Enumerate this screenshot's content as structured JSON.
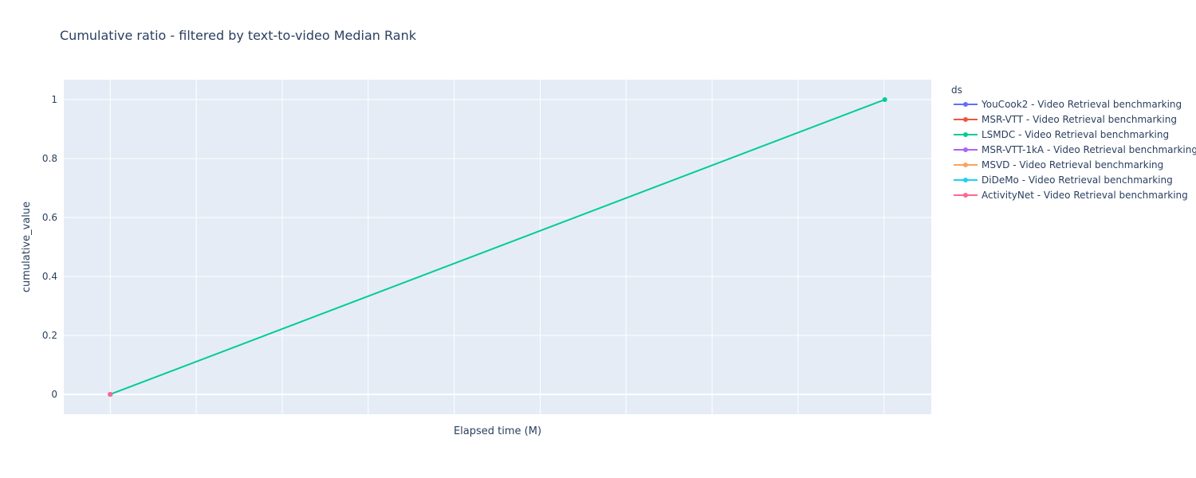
{
  "chart_data": {
    "type": "line",
    "title": "Cumulative ratio - filtered by text-to-video Median Rank",
    "xlabel": "Elapsed time (M)",
    "ylabel": "cumulative_value",
    "ylim": [
      -0.0676,
      1.0676
    ],
    "yticks": [
      0,
      0.2,
      0.4,
      0.6,
      0.8,
      1
    ],
    "xlim": [
      -0.06,
      1.06
    ],
    "grid": true,
    "legend_title": "ds",
    "legend_position": "right",
    "series": [
      {
        "name": "YouCook2 - Video Retrieval benchmarking",
        "color": "#636efa",
        "x": [
          0
        ],
        "y": [
          0
        ]
      },
      {
        "name": "MSR-VTT - Video Retrieval benchmarking",
        "color": "#EF553B",
        "x": [
          0
        ],
        "y": [
          0
        ]
      },
      {
        "name": "LSMDC - Video Retrieval benchmarking",
        "color": "#00cc96",
        "x": [
          0,
          1
        ],
        "y": [
          0,
          1
        ]
      },
      {
        "name": "MSR-VTT-1kA - Video Retrieval benchmarking",
        "color": "#ab63fa",
        "x": [
          0
        ],
        "y": [
          0
        ]
      },
      {
        "name": "MSVD - Video Retrieval benchmarking",
        "color": "#FFA15A",
        "x": [
          0
        ],
        "y": [
          0
        ]
      },
      {
        "name": "DiDeMo - Video Retrieval benchmarking",
        "color": "#19d3f3",
        "x": [
          0
        ],
        "y": [
          0
        ]
      },
      {
        "name": "ActivityNet - Video Retrieval benchmarking",
        "color": "#FF6692",
        "x": [
          0
        ],
        "y": [
          0
        ]
      }
    ]
  }
}
